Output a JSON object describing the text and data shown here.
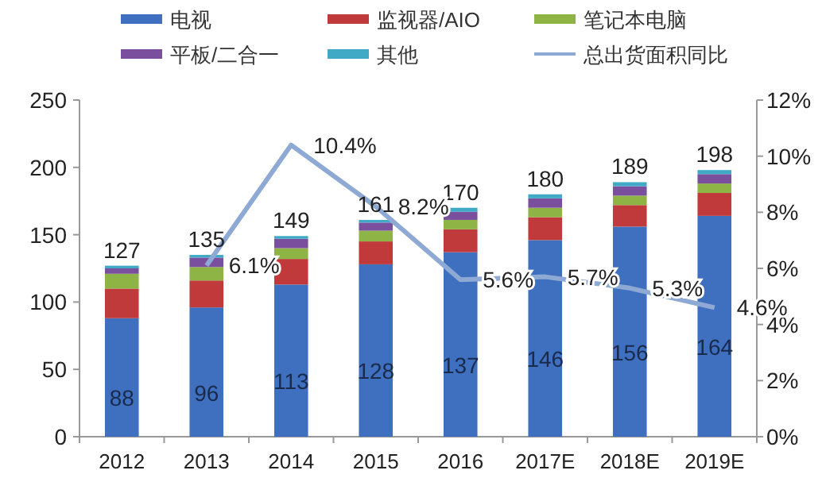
{
  "chart_data": {
    "type": "bar",
    "stacked": true,
    "categories": [
      "2012",
      "2013",
      "2014",
      "2015",
      "2016",
      "2017E",
      "2018E",
      "2019E"
    ],
    "series": [
      {
        "name": "电视",
        "color": "#3f6fbf",
        "values": [
          88,
          96,
          113,
          128,
          137,
          146,
          156,
          164
        ],
        "value_labels": [
          "88",
          "96",
          "113",
          "128",
          "137",
          "146",
          "156",
          "164"
        ]
      },
      {
        "name": "监视器/AIO",
        "color": "#c0393b",
        "values": [
          22,
          20,
          19,
          17,
          17,
          17,
          16,
          17
        ]
      },
      {
        "name": "笔记本电脑",
        "color": "#8db444",
        "values": [
          11,
          10,
          8,
          8,
          7,
          7,
          7,
          7
        ]
      },
      {
        "name": "平板/二合一",
        "color": "#7a4f9e",
        "values": [
          4,
          7,
          7,
          6,
          6,
          7,
          7,
          7
        ]
      },
      {
        "name": "其他",
        "color": "#3fa9c6",
        "values": [
          2,
          2,
          2,
          2,
          3,
          3,
          3,
          3
        ]
      },
      {
        "name": "总出货面积同比",
        "type": "line",
        "axis": "y2",
        "color": "#8eaad4",
        "values": [
          null,
          6.1,
          10.4,
          8.2,
          5.6,
          5.7,
          5.3,
          4.6
        ],
        "value_labels": [
          null,
          "6.1%",
          "10.4%",
          "8.2%",
          "5.6%",
          "5.7%",
          "5.3%",
          "4.6%"
        ]
      }
    ],
    "totals": [
      "127",
      "135",
      "149",
      "161",
      "170",
      "180",
      "189",
      "198"
    ],
    "ylim": [
      0,
      250
    ],
    "yticks": [
      0,
      50,
      100,
      150,
      200,
      250
    ],
    "y2lim": [
      0,
      12
    ],
    "y2ticks": [
      {
        "value": 0,
        "label": "0%"
      },
      {
        "value": 2,
        "label": "2%"
      },
      {
        "value": 4,
        "label": "4%"
      },
      {
        "value": 6,
        "label": "6%"
      },
      {
        "value": 8,
        "label": "8%"
      },
      {
        "value": 10,
        "label": "10%"
      },
      {
        "value": 12,
        "label": "12%"
      }
    ],
    "legend": "top",
    "grid": false
  }
}
